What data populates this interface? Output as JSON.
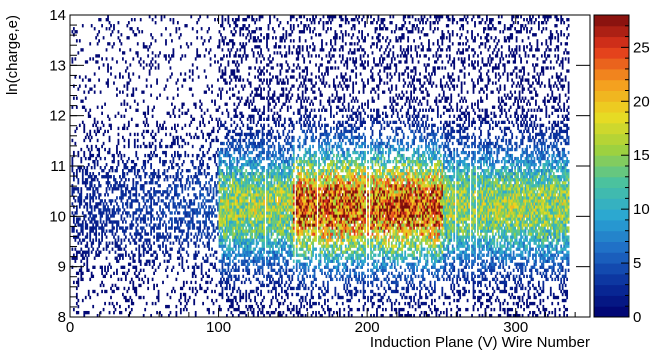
{
  "chart_data": {
    "type": "heatmap",
    "title": "",
    "xlabel": "Induction Plane (V) Wire Number",
    "ylabel": "ln(charge,e)",
    "xlim": [
      0,
      350
    ],
    "ylim": [
      8,
      14
    ],
    "x_ticks": [
      "0",
      "100",
      "200",
      "300"
    ],
    "y_ticks": [
      "8",
      "9",
      "10",
      "11",
      "12",
      "13",
      "14"
    ],
    "colorbar": {
      "range": [
        0,
        28
      ],
      "ticks": [
        "0",
        "5",
        "10",
        "15",
        "20",
        "25"
      ],
      "palette": "rainbow",
      "colors": [
        "#00006e",
        "#0a2f9c",
        "#1f6cc6",
        "#2aa7d3",
        "#49c2a0",
        "#9fd13e",
        "#eadc22",
        "#f59b1f",
        "#e2361c",
        "#7a0c0c"
      ]
    },
    "grid": false,
    "legend": "none",
    "description_of_density": {
      "active_wire_range": [
        100,
        335
      ],
      "sparse_wire_range": [
        5,
        100
      ],
      "dead_wires": [
        131,
        151,
        166,
        199,
        201,
        259,
        269,
        273
      ],
      "peak_ln_charge": 10.2,
      "peak_wire_region": [
        150,
        250
      ],
      "max_count": 28
    }
  }
}
